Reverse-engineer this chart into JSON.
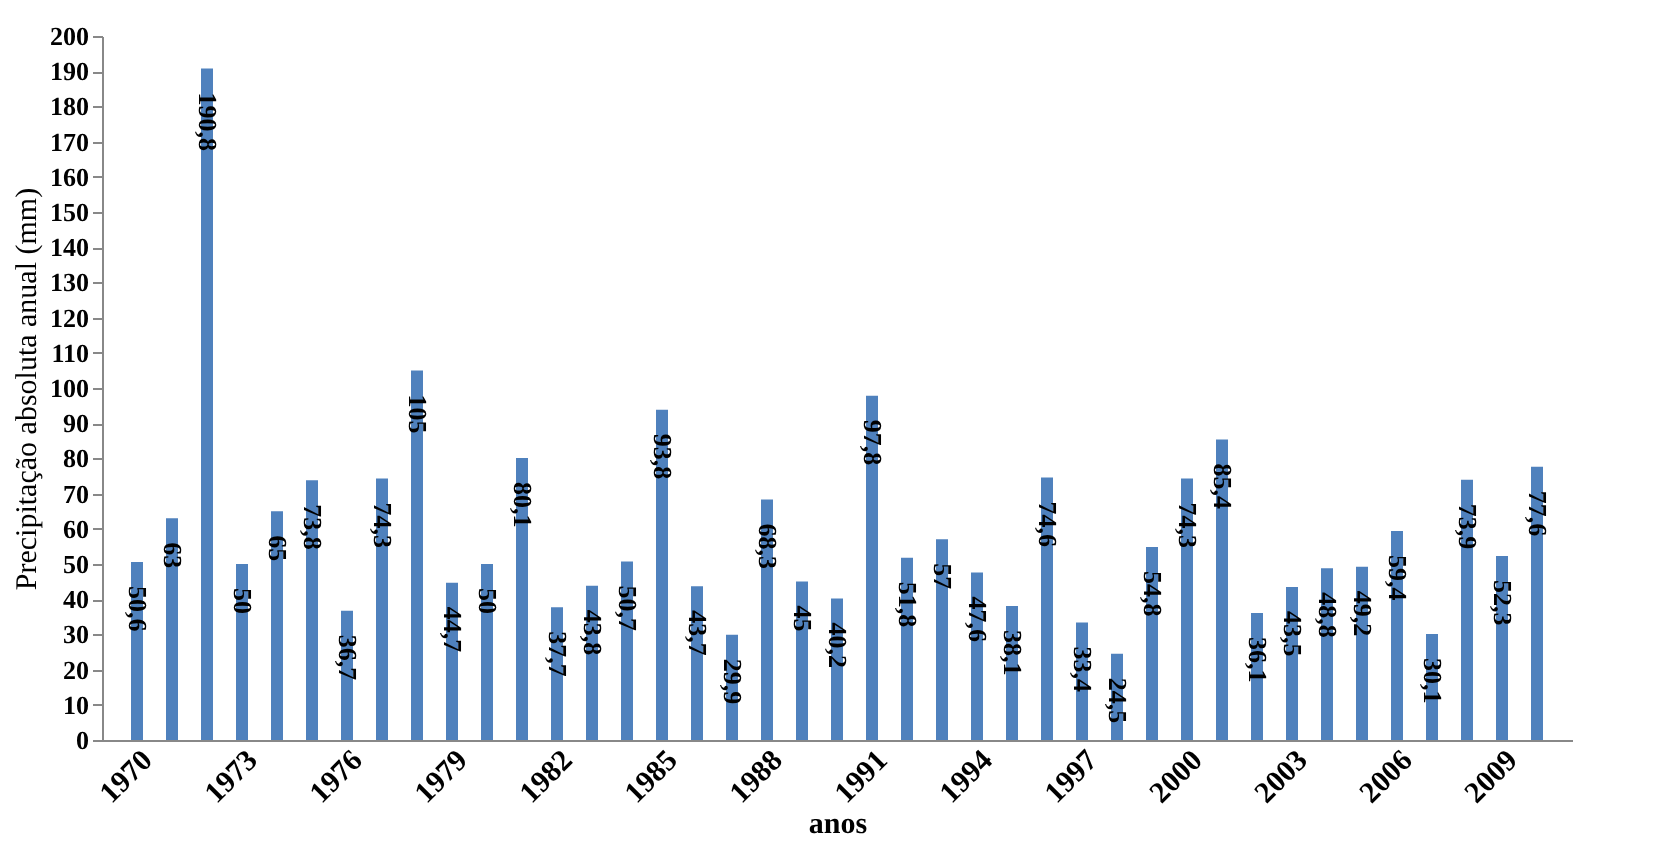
{
  "chart_data": {
    "type": "bar",
    "xlabel": "anos",
    "ylabel": "Precipitação absoluta anual (mm)",
    "categories": [
      "1970",
      null,
      null,
      "1973",
      null,
      null,
      "1976",
      null,
      null,
      "1979",
      null,
      null,
      "1982",
      null,
      null,
      "1985",
      null,
      null,
      "1988",
      null,
      null,
      "1991",
      null,
      null,
      "1994",
      null,
      null,
      "1997",
      null,
      null,
      "2000",
      null,
      null,
      "2003",
      null,
      null,
      "2006",
      null,
      null,
      "2009",
      null
    ],
    "values": [
      50.6,
      63,
      190.8,
      50,
      65,
      73.8,
      36.7,
      74.3,
      105,
      44.7,
      50,
      80.1,
      37.7,
      43.8,
      50.7,
      93.8,
      43.7,
      29.9,
      68.3,
      45,
      40.2,
      97.8,
      51.8,
      57,
      47.6,
      38.1,
      74.6,
      33.4,
      24.5,
      54.8,
      74.3,
      85.4,
      36.1,
      43.5,
      48.8,
      49.2,
      59.4,
      30.1,
      73.9,
      52.3,
      77.6
    ],
    "value_labels": [
      "50,6",
      "63",
      "190,8",
      "50",
      "65",
      "73,8",
      "36,7",
      "74,3",
      "105",
      "44,7",
      "50",
      "80,1",
      "37,7",
      "43,8",
      "50,7",
      "93,8",
      "43,7",
      "29,9",
      "68,3",
      "45",
      "40,2",
      "97,8",
      "51,8",
      "57",
      "47,6",
      "38,1",
      "74,6",
      "33,4",
      "24,5",
      "54,8",
      "74,3",
      "85,4",
      "36,1",
      "43,5",
      "48,8",
      "49,2",
      "59,4",
      "30,1",
      "73,9",
      "52,3",
      "77,6"
    ],
    "color": "#4f81bd",
    "ylim": [
      0,
      200
    ],
    "yticks": [
      0,
      10,
      20,
      30,
      40,
      50,
      60,
      70,
      80,
      90,
      100,
      110,
      120,
      130,
      140,
      150,
      160,
      170,
      180,
      190,
      200
    ],
    "grid": false
  }
}
